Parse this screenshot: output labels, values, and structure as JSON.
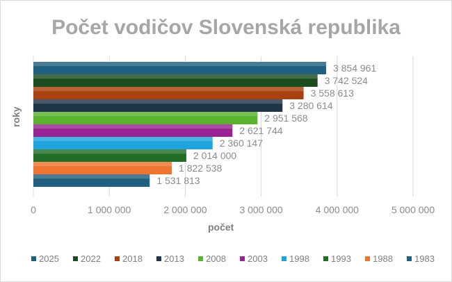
{
  "chart_data": {
    "type": "bar",
    "orientation": "horizontal",
    "title": "Počet vodičov Slovenská republika",
    "xlabel": "počet",
    "ylabel": "roky",
    "xlim": [
      0,
      5000000
    ],
    "xticks": [
      "0",
      "1 000 000",
      "2 000 000",
      "3 000 000",
      "4 000 000",
      "5 000 000"
    ],
    "grid": true,
    "legend_position": "bottom",
    "categories": [
      "2025",
      "2022",
      "2018",
      "2013",
      "2008",
      "2003",
      "1998",
      "1993",
      "1988",
      "1983"
    ],
    "values": [
      3854961,
      3742524,
      3558613,
      3280614,
      2951568,
      2621744,
      2360147,
      2014000,
      1822538,
      1531813
    ],
    "data_labels": [
      "3 854 961",
      "3 742 524",
      "3 558 613",
      "3 280 614",
      "2 951 568",
      "2 621 744",
      "2 360 147",
      "2 014 000",
      "1 822 538",
      "1 531 813"
    ],
    "colors": [
      "#1f5f7f",
      "#1b4d1f",
      "#a9400f",
      "#203448",
      "#5ab22f",
      "#9a2393",
      "#1ea3dd",
      "#226d25",
      "#ee7430",
      "#1f5f7f"
    ]
  }
}
